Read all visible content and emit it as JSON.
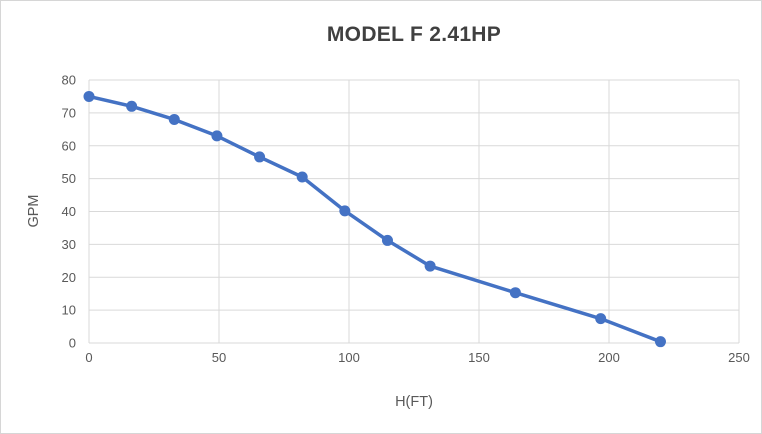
{
  "chart_data": {
    "type": "line",
    "title": "MODEL F 2.41HP",
    "xlabel": "H(FT)",
    "ylabel": "GPM",
    "xlim": [
      0,
      250
    ],
    "ylim": [
      0,
      80
    ],
    "x_ticks": [
      0,
      50,
      100,
      150,
      200,
      250
    ],
    "y_ticks": [
      0,
      10,
      20,
      30,
      40,
      50,
      60,
      70,
      80
    ],
    "grid": true,
    "legend": false,
    "series": [
      {
        "x": [
          0,
          16.4,
          32.8,
          49.2,
          65.6,
          82,
          98.4,
          114.8,
          131.2,
          164,
          196.8,
          219.8
        ],
        "y": [
          75,
          72,
          68,
          63,
          56.6,
          50.5,
          40.2,
          31.2,
          23.4,
          15.3,
          7.4,
          0.4
        ],
        "color": "#4472C4",
        "marker": "circle",
        "line_width": 3.5,
        "marker_radius": 5.5
      }
    ],
    "colors": {
      "line": "#4472C4",
      "gridline": "#D9D9D9",
      "axis_line": "#D9D9D9",
      "tick_label": "#595959",
      "title": "#404040",
      "background": "#FFFFFF",
      "border": "#D6D6D6"
    }
  }
}
